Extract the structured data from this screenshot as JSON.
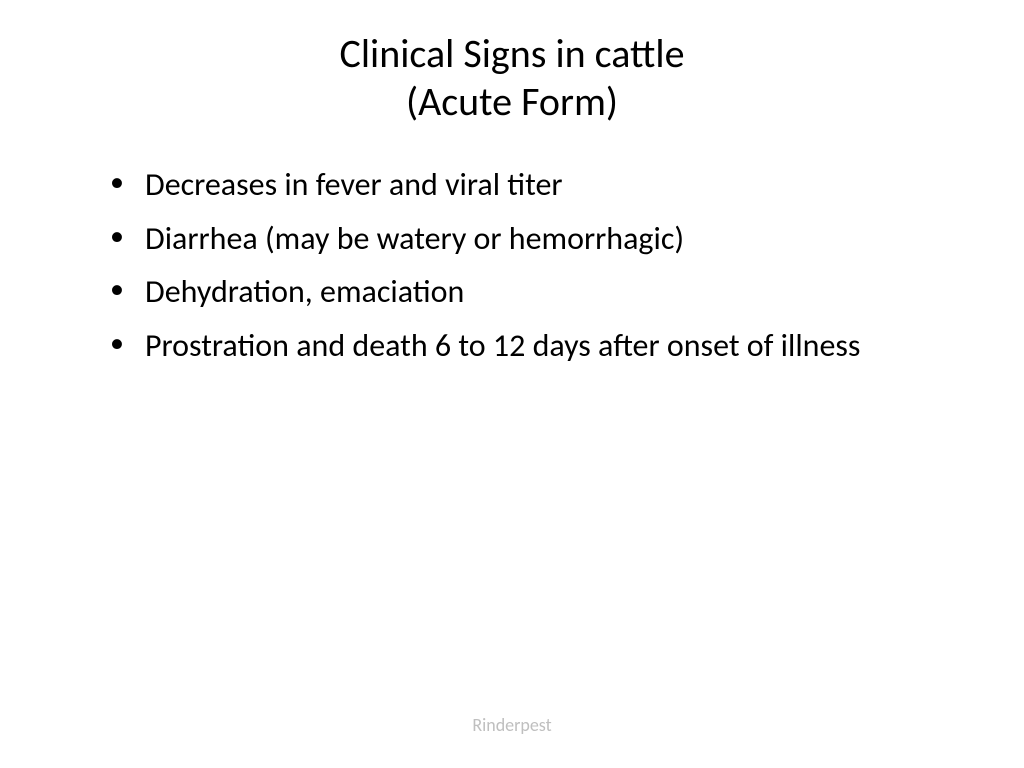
{
  "slide": {
    "title_line1": "Clinical Signs in cattle",
    "title_line2": "(Acute Form)",
    "bullets": [
      "Decreases in fever and viral titer",
      "Diarrhea (may be watery or hemorrhagic)",
      "Dehydration, emaciation",
      "Prostration and death 6 to 12 days after onset of illness"
    ],
    "footer": "Rinderpest"
  },
  "styling": {
    "background_color": "#ffffff",
    "title_color": "#000000",
    "title_fontsize": 40,
    "body_color": "#000000",
    "body_fontsize": 32,
    "footer_color": "#bfbfbf",
    "footer_fontsize": 18,
    "font_family": "Calibri"
  }
}
